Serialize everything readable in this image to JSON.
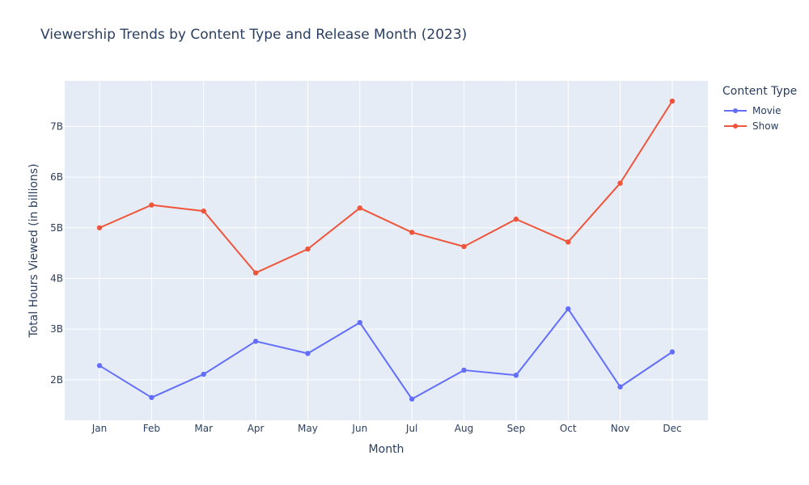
{
  "chart_data": {
    "type": "line",
    "title": "Viewership Trends by Content Type and Release Month (2023)",
    "xlabel": "Month",
    "ylabel": "Total Hours Viewed (in billions)",
    "categories": [
      "Jan",
      "Feb",
      "Mar",
      "Apr",
      "May",
      "Jun",
      "Jul",
      "Aug",
      "Sep",
      "Oct",
      "Nov",
      "Dec"
    ],
    "ylim": [
      1.2,
      7.9
    ],
    "yticks": [
      2,
      3,
      4,
      5,
      6,
      7
    ],
    "ytick_labels": [
      "2B",
      "3B",
      "4B",
      "5B",
      "6B",
      "7B"
    ],
    "grid": true,
    "legend": {
      "title": "Content Type",
      "position": "right"
    },
    "series": [
      {
        "name": "Movie",
        "color": "#636efa",
        "values": [
          2.28,
          1.65,
          2.11,
          2.76,
          2.52,
          3.13,
          1.62,
          2.19,
          2.09,
          3.4,
          1.86,
          2.55
        ]
      },
      {
        "name": "Show",
        "color": "#ef553b",
        "values": [
          5.0,
          5.45,
          5.33,
          4.11,
          4.58,
          5.39,
          4.91,
          4.63,
          5.17,
          4.72,
          5.88,
          7.5
        ]
      }
    ]
  }
}
